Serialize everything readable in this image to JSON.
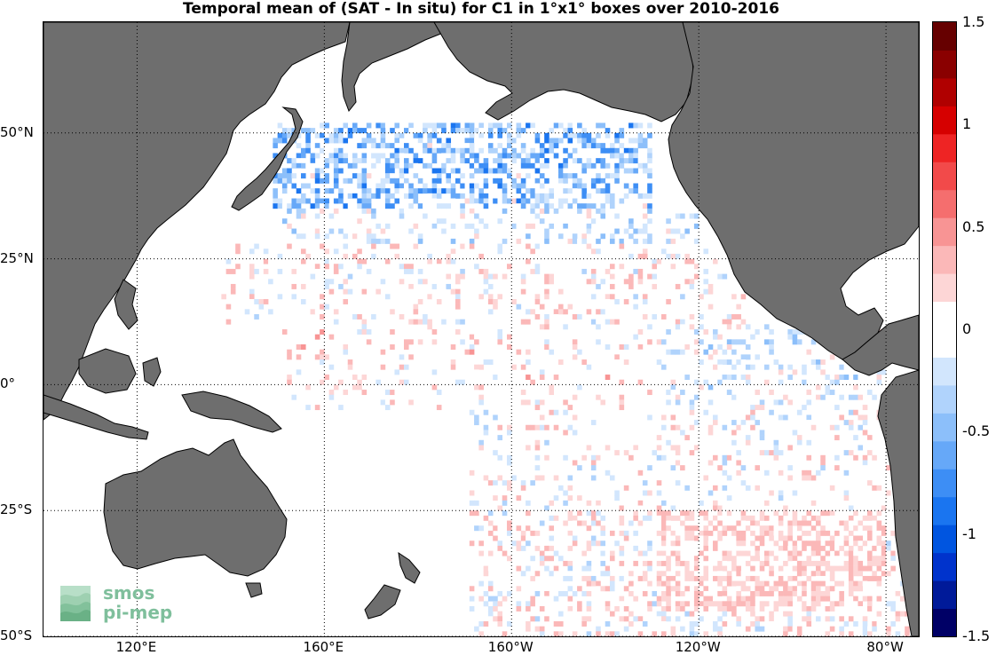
{
  "title": "Temporal mean of (SAT - In situ) for C1 in 1°x1° boxes over 2010-2016",
  "map": {
    "lon_range": [
      100,
      287
    ],
    "lat_range": [
      -50,
      72
    ],
    "lat_ticks": [
      {
        "value": 50,
        "label": "50°N"
      },
      {
        "value": 25,
        "label": "25°N"
      },
      {
        "value": 0,
        "label": "0°"
      },
      {
        "value": -25,
        "label": "25°S"
      },
      {
        "value": -50,
        "label": "50°S"
      }
    ],
    "lon_ticks": [
      {
        "value": 120,
        "label": "120°E"
      },
      {
        "value": 160,
        "label": "160°E"
      },
      {
        "value": 200,
        "label": "160°W"
      },
      {
        "value": 240,
        "label": "120°W"
      },
      {
        "value": 280,
        "label": "80°W"
      }
    ],
    "land_color": "#6e6e6e",
    "ocean_color": "#ffffff",
    "grid_style": "dotted"
  },
  "colorbar": {
    "min": -1.5,
    "max": 1.5,
    "ticks": [
      {
        "value": 1.5,
        "label": "1.5"
      },
      {
        "value": 1,
        "label": "1"
      },
      {
        "value": 0.5,
        "label": "0.5"
      },
      {
        "value": 0,
        "label": "0"
      },
      {
        "value": -0.5,
        "label": "-0.5"
      },
      {
        "value": -1,
        "label": "-1"
      },
      {
        "value": -1.5,
        "label": "-1.5"
      }
    ],
    "colors": [
      "#000066",
      "#001a99",
      "#0033cc",
      "#0055e0",
      "#1a75f0",
      "#3d8ef5",
      "#66a8f8",
      "#8cbffa",
      "#b0d3fc",
      "#d2e6fd",
      "#ffffff",
      "#ffffff",
      "#fdd6d6",
      "#fbb8b8",
      "#f89494",
      "#f56e6e",
      "#f24a4a",
      "#ee2424",
      "#d60000",
      "#b00000",
      "#8a0000",
      "#660000"
    ]
  },
  "logo": {
    "line1": "smos",
    "line2": "pi-mep"
  }
}
